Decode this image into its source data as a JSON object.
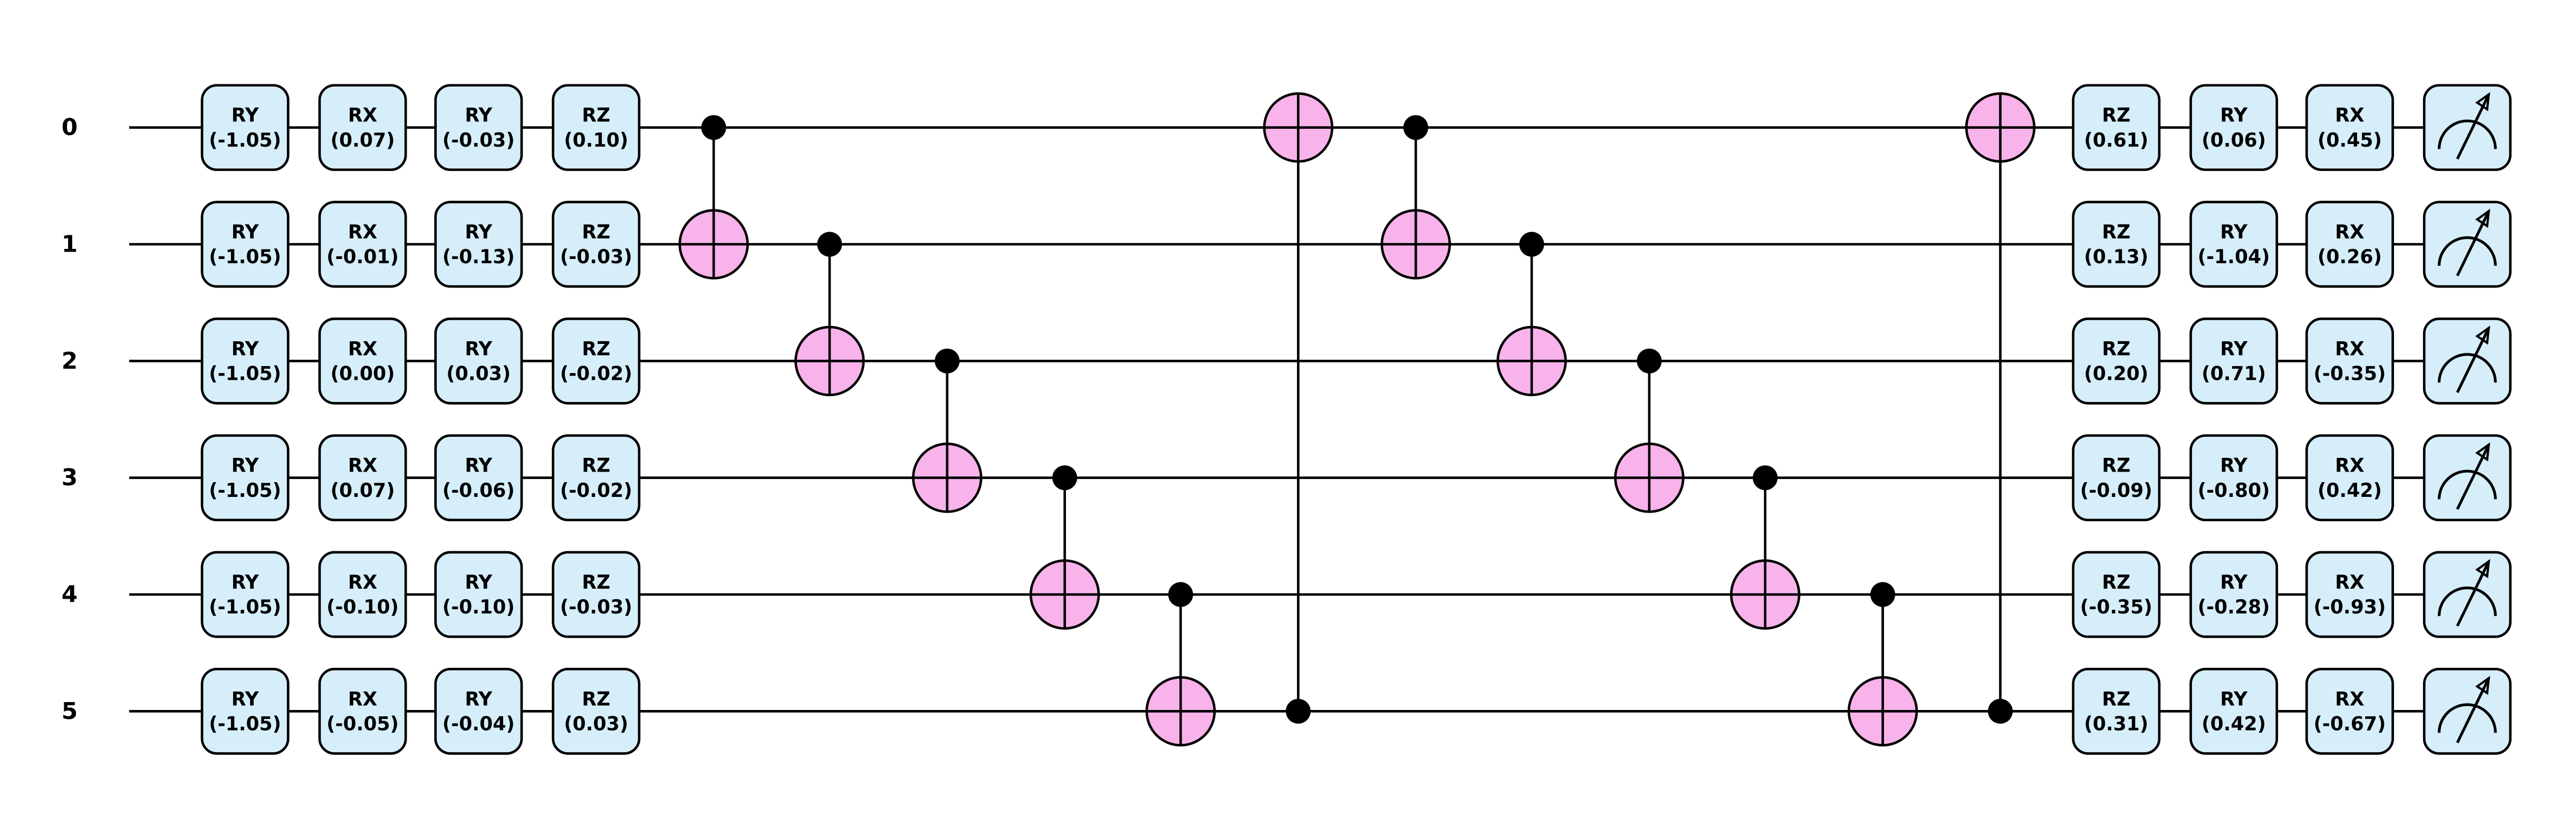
{
  "qubits": [
    "0",
    "1",
    "2",
    "3",
    "4",
    "5"
  ],
  "colors": {
    "wire": "#000000",
    "gate_fill": "#d6eefa",
    "target_fill": "#f7b3ea",
    "control": "#000000"
  },
  "pre_layers": [
    {
      "labels": [
        "RY",
        "RY",
        "RY",
        "RY",
        "RY",
        "RY"
      ],
      "params": [
        "(-1.05)",
        "(-1.05)",
        "(-1.05)",
        "(-1.05)",
        "(-1.05)",
        "(-1.05)"
      ]
    },
    {
      "labels": [
        "RX",
        "RX",
        "RX",
        "RX",
        "RX",
        "RX"
      ],
      "params": [
        "(0.07)",
        "(-0.01)",
        "(0.00)",
        "(0.07)",
        "(-0.10)",
        "(-0.05)"
      ]
    },
    {
      "labels": [
        "RY",
        "RY",
        "RY",
        "RY",
        "RY",
        "RY"
      ],
      "params": [
        "(-0.03)",
        "(-0.13)",
        "(0.03)",
        "(-0.06)",
        "(-0.10)",
        "(-0.04)"
      ]
    },
    {
      "labels": [
        "RZ",
        "RZ",
        "RZ",
        "RZ",
        "RZ",
        "RZ"
      ],
      "params": [
        "(0.10)",
        "(-0.03)",
        "(-0.02)",
        "(-0.02)",
        "(-0.03)",
        "(0.03)"
      ]
    }
  ],
  "cnots": [
    {
      "control": 0,
      "target": 1
    },
    {
      "control": 1,
      "target": 2
    },
    {
      "control": 2,
      "target": 3
    },
    {
      "control": 3,
      "target": 4
    },
    {
      "control": 4,
      "target": 5
    },
    {
      "control": 5,
      "target": 0
    },
    {
      "control": 0,
      "target": 1
    },
    {
      "control": 1,
      "target": 2
    },
    {
      "control": 2,
      "target": 3
    },
    {
      "control": 3,
      "target": 4
    },
    {
      "control": 4,
      "target": 5
    },
    {
      "control": 5,
      "target": 0
    }
  ],
  "post_layers": [
    {
      "labels": [
        "RZ",
        "RZ",
        "RZ",
        "RZ",
        "RZ",
        "RZ"
      ],
      "params": [
        "(0.61)",
        "(0.13)",
        "(0.20)",
        "(-0.09)",
        "(-0.35)",
        "(0.31)"
      ]
    },
    {
      "labels": [
        "RY",
        "RY",
        "RY",
        "RY",
        "RY",
        "RY"
      ],
      "params": [
        "(0.06)",
        "(-1.04)",
        "(0.71)",
        "(-0.80)",
        "(-0.28)",
        "(0.42)"
      ]
    },
    {
      "labels": [
        "RX",
        "RX",
        "RX",
        "RX",
        "RX",
        "RX"
      ],
      "params": [
        "(0.45)",
        "(0.26)",
        "(-0.35)",
        "(0.42)",
        "(-0.93)",
        "(-0.67)"
      ]
    }
  ],
  "measurements": [
    "measure-icon",
    "measure-icon",
    "measure-icon",
    "measure-icon",
    "measure-icon",
    "measure-icon"
  ]
}
